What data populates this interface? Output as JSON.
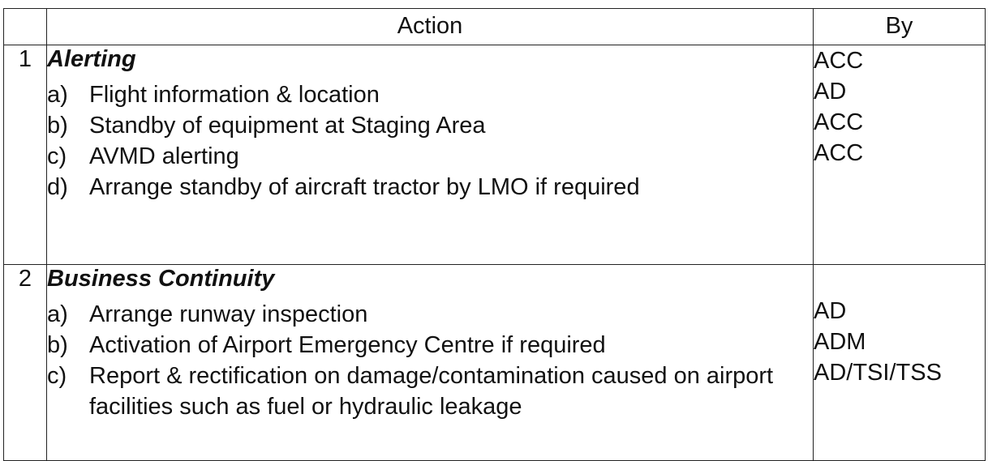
{
  "header": {
    "num": "",
    "action": "Action",
    "by": "By"
  },
  "rows": [
    {
      "num": "1",
      "title": "Alerting",
      "items": [
        {
          "label": "a)",
          "text": "Flight information & location",
          "by": "ACC"
        },
        {
          "label": "b)",
          "text": "Standby of equipment at Staging Area",
          "by": "AD"
        },
        {
          "label": "c)",
          "text": "AVMD alerting",
          "by": "ACC"
        },
        {
          "label": "d)",
          "text": "Arrange standby of aircraft tractor by LMO if required",
          "by": "ACC"
        }
      ]
    },
    {
      "num": "2",
      "title": "Business Continuity",
      "items": [
        {
          "label": "a)",
          "text": "Arrange runway inspection",
          "by": "AD"
        },
        {
          "label": "b)",
          "text": "Activation of Airport Emergency Centre if required",
          "by": "ADM"
        },
        {
          "label": "c)",
          "text": "Report & rectification on damage/contamination caused on airport facilities such as fuel or hydraulic leakage",
          "by": "AD/TSI/TSS"
        }
      ]
    }
  ]
}
